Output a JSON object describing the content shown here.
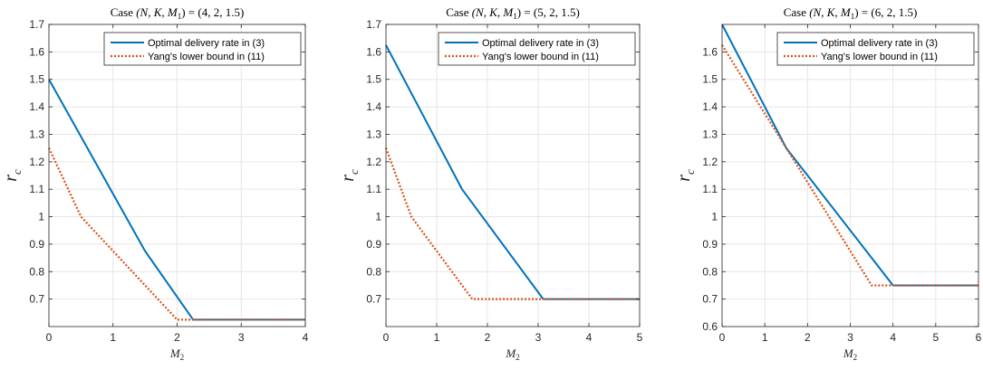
{
  "chart_data": [
    {
      "type": "line",
      "title_prefix": "Case",
      "title_math": "(N, K, M",
      "title_sub": "1",
      "title_suffix": ") = (4, 2, 1.5)",
      "xlabel": "M",
      "xlabel_sub": "2",
      "ylabel": "r",
      "ylabel_sub": "c",
      "xlim": [
        0,
        4
      ],
      "ylim": [
        0.6,
        1.7
      ],
      "xticks": [
        0,
        1,
        2,
        3,
        4
      ],
      "yticks": [
        0.7,
        0.8,
        0.9,
        1.0,
        1.1,
        1.2,
        1.3,
        1.4,
        1.5,
        1.6,
        1.7
      ],
      "ytick_labels": [
        "0.7",
        "0.8",
        "0.9",
        "1",
        "1.1",
        "1.2",
        "1.3",
        "1.4",
        "1.5",
        "1.6",
        "1.7"
      ],
      "grid": true,
      "legend": "top-right",
      "series": [
        {
          "name": "Optimal delivery rate in (3)",
          "color": "#0072BD",
          "style": "solid",
          "x": [
            0,
            1.5,
            2.25,
            4
          ],
          "y": [
            1.5,
            0.875,
            0.625,
            0.625
          ]
        },
        {
          "name": "Yang's lower bound in (11)",
          "color": "#D95319",
          "style": "dotted",
          "x": [
            0,
            0.5,
            2,
            4
          ],
          "y": [
            1.25,
            1.0,
            0.625,
            0.625
          ]
        }
      ]
    },
    {
      "type": "line",
      "title_prefix": "Case",
      "title_math": "(N, K, M",
      "title_sub": "1",
      "title_suffix": ") = (5, 2, 1.5)",
      "xlabel": "M",
      "xlabel_sub": "2",
      "ylabel": "r",
      "ylabel_sub": "c",
      "xlim": [
        0,
        5
      ],
      "ylim": [
        0.6,
        1.7
      ],
      "xticks": [
        0,
        1,
        2,
        3,
        4,
        5
      ],
      "yticks": [
        0.7,
        0.8,
        0.9,
        1.0,
        1.1,
        1.2,
        1.3,
        1.4,
        1.5,
        1.6,
        1.7
      ],
      "ytick_labels": [
        "0.7",
        "0.8",
        "0.9",
        "1",
        "1.1",
        "1.2",
        "1.3",
        "1.4",
        "1.5",
        "1.6",
        "1.7"
      ],
      "grid": true,
      "legend": "top-right",
      "series": [
        {
          "name": "Optimal delivery rate in (3)",
          "color": "#0072BD",
          "style": "solid",
          "x": [
            0,
            1.5,
            3.1,
            5
          ],
          "y": [
            1.625,
            1.1,
            0.7,
            0.7
          ]
        },
        {
          "name": "Yang's lower bound in (11)",
          "color": "#D95319",
          "style": "dotted",
          "x": [
            0,
            0.5,
            1.7,
            5
          ],
          "y": [
            1.25,
            1.0,
            0.7,
            0.7
          ]
        }
      ]
    },
    {
      "type": "line",
      "title_prefix": "Case",
      "title_math": "(N, K, M",
      "title_sub": "1",
      "title_suffix": ") = (6, 2, 1.5)",
      "xlabel": "M",
      "xlabel_sub": "2",
      "ylabel": "r",
      "ylabel_sub": "c",
      "xlim": [
        0,
        6
      ],
      "ylim": [
        0.6,
        1.7
      ],
      "xticks": [
        0,
        1,
        2,
        3,
        4,
        5,
        6
      ],
      "yticks": [
        0.6,
        0.7,
        0.8,
        0.9,
        1.0,
        1.1,
        1.2,
        1.3,
        1.4,
        1.5,
        1.6
      ],
      "ytick_labels": [
        "0.6",
        "0.7",
        "0.8",
        "0.9",
        "1",
        "1.1",
        "1.2",
        "1.3",
        "1.4",
        "1.5",
        "1.6"
      ],
      "grid": true,
      "legend": "top-right",
      "series": [
        {
          "name": "Optimal delivery rate in (3)",
          "color": "#0072BD",
          "style": "solid",
          "x": [
            0,
            1.5,
            4,
            6
          ],
          "y": [
            1.7,
            1.25,
            0.75,
            0.75
          ]
        },
        {
          "name": "Yang's lower bound in (11)",
          "color": "#D95319",
          "style": "dotted",
          "x": [
            0,
            1.5,
            3.5,
            6
          ],
          "y": [
            1.625,
            1.25,
            0.75,
            0.75
          ]
        }
      ]
    }
  ]
}
